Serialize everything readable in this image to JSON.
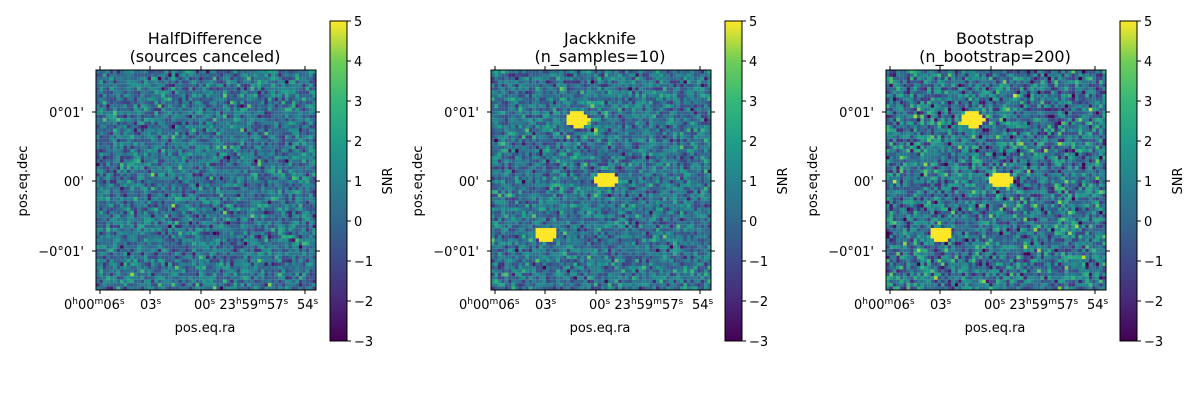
{
  "chart_data": [
    {
      "type": "heatmap",
      "title_line1": "HalfDifference",
      "title_line2": "(sources canceled)",
      "xlabel": "pos.eq.ra",
      "ylabel": "pos.eq.dec",
      "colorbar_label": "SNR",
      "colormap": "viridis",
      "vmin": -3,
      "vmax": 5,
      "noise_sigma": 1.0,
      "sources": []
    },
    {
      "type": "heatmap",
      "title_line1": "Jackknife",
      "title_line2": "(n_samples=10)",
      "xlabel": "pos.eq.ra",
      "ylabel": "pos.eq.dec",
      "colorbar_label": "SNR",
      "colormap": "viridis",
      "vmin": -3,
      "vmax": 5,
      "noise_sigma": 1.0,
      "sources": [
        {
          "ra_s": 1.4,
          "dec_arcmin": 0.85,
          "snr": 5
        },
        {
          "ra_s": -0.3,
          "dec_arcmin": 0.0,
          "snr": 5
        },
        {
          "ra_s": 3.3,
          "dec_arcmin": -0.77,
          "snr": 5
        }
      ]
    },
    {
      "type": "heatmap",
      "title_line1": "Bootstrap",
      "title_line2": "(n_bootstrap=200)",
      "xlabel": "pos.eq.ra",
      "ylabel": "pos.eq.dec",
      "colorbar_label": "SNR",
      "colormap": "viridis",
      "vmin": -3,
      "vmax": 5,
      "noise_sigma": 1.3,
      "sources": [
        {
          "ra_s": 1.4,
          "dec_arcmin": 0.85,
          "snr": 5
        },
        {
          "ra_s": -0.3,
          "dec_arcmin": 0.0,
          "snr": 5
        },
        {
          "ra_s": 3.3,
          "dec_arcmin": -0.77,
          "snr": 5
        }
      ]
    }
  ],
  "axes": {
    "ra_range_s": [
      6.6,
      -6.6
    ],
    "dec_range_arcmin": [
      -1.55,
      1.55
    ],
    "x_ticks": [
      {
        "ra_s": 6,
        "label": "0h00m06s"
      },
      {
        "ra_s": 3,
        "label": "03s"
      },
      {
        "ra_s": 0,
        "label": "00s 23h59m57s"
      },
      {
        "ra_s": -6,
        "label": "54s"
      }
    ],
    "y_ticks": [
      {
        "dec_arcmin": 1,
        "label": "0°01'"
      },
      {
        "dec_arcmin": 0,
        "label": "00'"
      },
      {
        "dec_arcmin": -1,
        "label": "−0°01'"
      }
    ],
    "colorbar_ticks": [
      5,
      4,
      3,
      2,
      1,
      0,
      -1,
      -2,
      -3
    ]
  }
}
